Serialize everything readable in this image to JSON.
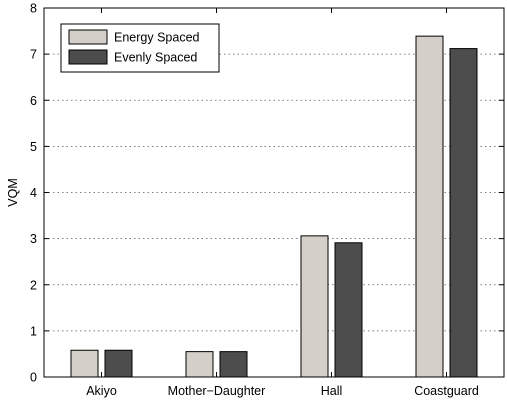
{
  "chart_data": {
    "type": "bar",
    "title": "",
    "xlabel": "",
    "ylabel": "VQM",
    "ylim": [
      0,
      8
    ],
    "yticks": [
      0,
      1,
      2,
      3,
      4,
      5,
      6,
      7,
      8
    ],
    "grid": true,
    "legend_position": "top-left",
    "categories": [
      "Akiyo",
      "Mother−Daughter",
      "Hall",
      "Coastguard"
    ],
    "series": [
      {
        "name": "Energy Spaced",
        "color": "#d4d0c8",
        "values": [
          0.58,
          0.55,
          3.06,
          7.39
        ]
      },
      {
        "name": "Evenly Spaced",
        "color": "#4d4d4d",
        "values": [
          0.58,
          0.55,
          2.91,
          7.12
        ]
      }
    ]
  }
}
